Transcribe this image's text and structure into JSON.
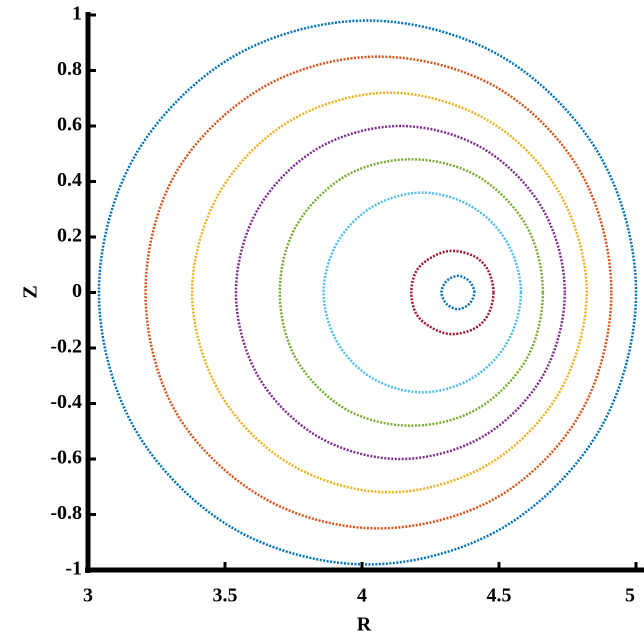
{
  "chart_data": {
    "type": "poincare",
    "xlabel": "R",
    "ylabel": "Z",
    "xlim": [
      3,
      5
    ],
    "ylim": [
      -1,
      1
    ],
    "xticks": [
      3,
      3.5,
      4,
      4.5,
      5
    ],
    "yticks": [
      -1,
      -0.8,
      -0.6,
      -0.4,
      -0.2,
      0,
      0.2,
      0.4,
      0.6,
      0.8,
      1
    ],
    "series": [
      {
        "color": "#0072bd",
        "x": [
          5.0,
          4.87,
          4.51,
          4.02,
          3.53,
          3.17,
          3.04,
          3.17,
          3.53,
          4.02,
          4.51,
          4.87
        ],
        "values": [
          0,
          0.49,
          0.85,
          0.98,
          0.85,
          0.49,
          0,
          -0.49,
          -0.85,
          -0.98,
          -0.85,
          -0.49
        ]
      },
      {
        "color": "#d95319",
        "x": [
          4.91,
          4.8,
          4.49,
          4.06,
          3.64,
          3.32,
          3.21,
          3.32,
          3.64,
          4.06,
          4.49,
          4.8
        ],
        "values": [
          0,
          0.43,
          0.74,
          0.85,
          0.74,
          0.43,
          0,
          -0.43,
          -0.74,
          -0.85,
          -0.74,
          -0.43
        ]
      },
      {
        "color": "#edb120",
        "x": [
          4.82,
          4.72,
          4.46,
          4.1,
          3.74,
          3.48,
          3.38,
          3.48,
          3.74,
          4.1,
          4.46,
          4.72
        ],
        "values": [
          0,
          0.36,
          0.62,
          0.72,
          0.62,
          0.36,
          0,
          -0.36,
          -0.62,
          -0.72,
          -0.62,
          -0.36
        ]
      },
      {
        "color": "#7e2f8e",
        "x": [
          4.74,
          4.66,
          4.44,
          4.14,
          3.84,
          3.62,
          3.54,
          3.62,
          3.84,
          4.14,
          4.44,
          4.66
        ],
        "values": [
          0,
          0.3,
          0.52,
          0.6,
          0.52,
          0.3,
          0,
          -0.3,
          -0.52,
          -0.6,
          -0.52,
          -0.3
        ]
      },
      {
        "color": "#77ac30",
        "x": [
          4.66,
          4.6,
          4.42,
          4.18,
          3.94,
          3.76,
          3.7,
          3.76,
          3.94,
          4.18,
          4.42,
          4.6
        ],
        "values": [
          0,
          0.24,
          0.42,
          0.48,
          0.42,
          0.24,
          0,
          -0.24,
          -0.42,
          -0.48,
          -0.42,
          -0.24
        ]
      },
      {
        "color": "#4dbeee",
        "x": [
          4.58,
          4.53,
          4.4,
          4.22,
          4.04,
          3.91,
          3.86,
          3.91,
          4.04,
          4.22,
          4.4,
          4.53
        ],
        "values": [
          0,
          0.18,
          0.31,
          0.36,
          0.31,
          0.18,
          0,
          -0.18,
          -0.31,
          -0.36,
          -0.31,
          -0.18
        ]
      },
      {
        "color": "#a2142f",
        "x": [
          4.48,
          4.46,
          4.41,
          4.33,
          4.26,
          4.2,
          4.18,
          4.2,
          4.26,
          4.33,
          4.41,
          4.46
        ],
        "values": [
          0,
          0.08,
          0.13,
          0.15,
          0.13,
          0.08,
          0,
          -0.08,
          -0.13,
          -0.15,
          -0.13,
          -0.08
        ]
      },
      {
        "color": "#0072bd",
        "x": [
          4.41,
          4.4,
          4.38,
          4.35,
          4.32,
          4.3,
          4.29,
          4.3,
          4.32,
          4.35,
          4.38,
          4.4
        ],
        "values": [
          0,
          0.03,
          0.05,
          0.06,
          0.05,
          0.03,
          0,
          -0.03,
          -0.05,
          -0.06,
          -0.05,
          -0.03
        ]
      }
    ]
  }
}
